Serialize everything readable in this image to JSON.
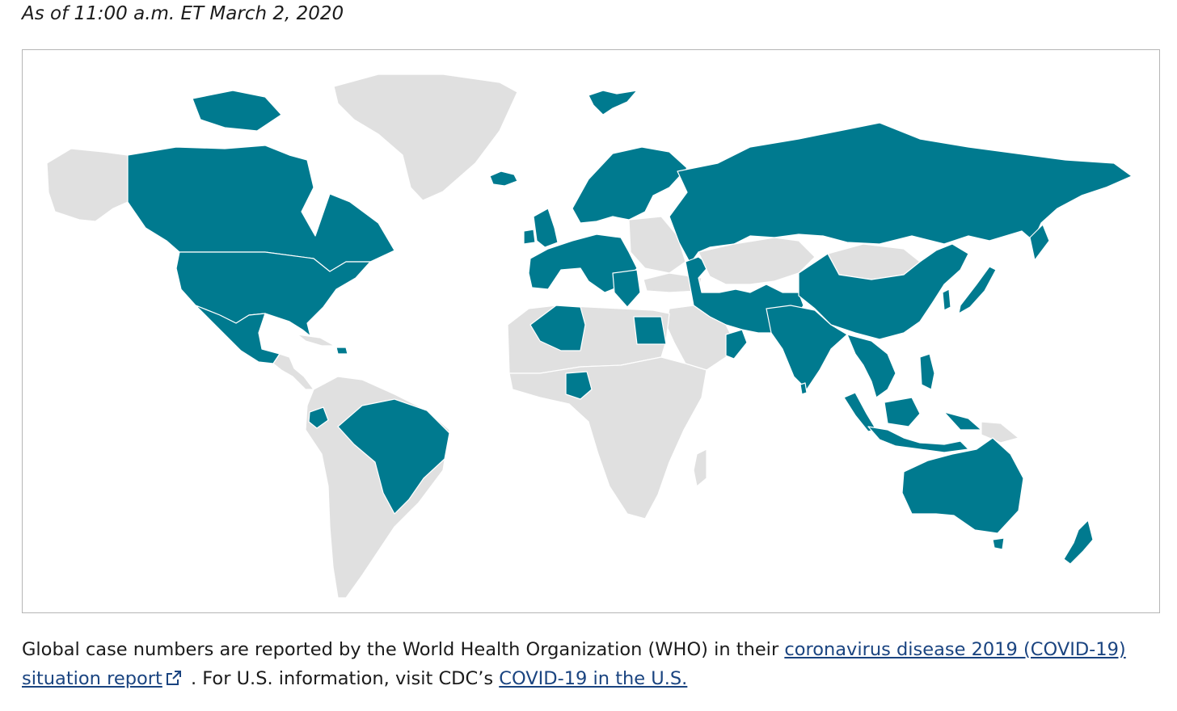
{
  "timestamp": "As of 11:00 a.m. ET March 2, 2020",
  "map": {
    "colors": {
      "affected": "#007a8f",
      "unaffected": "#e0e0e0",
      "border": "#ffffff"
    },
    "regions": [
      {
        "name": "alaska",
        "affected": false
      },
      {
        "name": "canada",
        "affected": true
      },
      {
        "name": "greenland",
        "affected": false
      },
      {
        "name": "iceland",
        "affected": true
      },
      {
        "name": "svalbard",
        "affected": true
      },
      {
        "name": "united-states",
        "affected": true
      },
      {
        "name": "mexico",
        "affected": true
      },
      {
        "name": "central-america-caribbean",
        "affected": false
      },
      {
        "name": "dominican-republic",
        "affected": true
      },
      {
        "name": "south-america",
        "affected": false
      },
      {
        "name": "ecuador",
        "affected": true
      },
      {
        "name": "brazil",
        "affected": true
      },
      {
        "name": "scandinavia",
        "affected": true
      },
      {
        "name": "western-europe",
        "affected": true
      },
      {
        "name": "united-kingdom-ireland",
        "affected": true
      },
      {
        "name": "eastern-europe",
        "affected": false
      },
      {
        "name": "russia",
        "affected": true
      },
      {
        "name": "caucasus-middle-east",
        "affected": true
      },
      {
        "name": "turkey",
        "affected": false
      },
      {
        "name": "saudi-arabia",
        "affected": false
      },
      {
        "name": "oman",
        "affected": true
      },
      {
        "name": "north-africa",
        "affected": false
      },
      {
        "name": "algeria",
        "affected": true
      },
      {
        "name": "egypt",
        "affected": true
      },
      {
        "name": "nigeria",
        "affected": true
      },
      {
        "name": "sub-saharan-africa",
        "affected": false
      },
      {
        "name": "madagascar",
        "affected": false
      },
      {
        "name": "central-asia",
        "affected": false
      },
      {
        "name": "mongolia",
        "affected": false
      },
      {
        "name": "china",
        "affected": true
      },
      {
        "name": "korea",
        "affected": true
      },
      {
        "name": "japan",
        "affected": true
      },
      {
        "name": "india",
        "affected": true
      },
      {
        "name": "sri-lanka",
        "affected": true
      },
      {
        "name": "southeast-asia",
        "affected": true
      },
      {
        "name": "philippines",
        "affected": true
      },
      {
        "name": "indonesia",
        "affected": true
      },
      {
        "name": "papua-new-guinea",
        "affected": false
      },
      {
        "name": "australia",
        "affected": true
      },
      {
        "name": "tasmania",
        "affected": true
      },
      {
        "name": "new-zealand",
        "affected": true
      }
    ]
  },
  "footer": {
    "text_before": "Global case numbers are reported by the World Health Organization (WHO) in their ",
    "link1": "coronavirus disease 2019 (COVID-19) situation report",
    "external_icon": "external-link-icon",
    "text_middle": " . For U.S. information, visit CDC’s ",
    "link2": "COVID-19 in the U.S."
  }
}
